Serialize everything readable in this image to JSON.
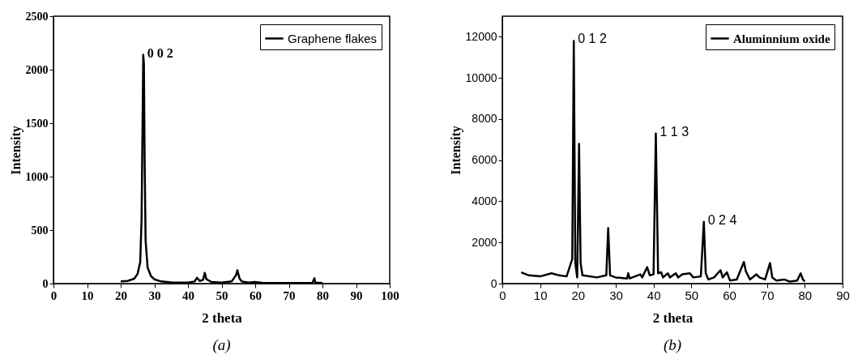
{
  "chart_data": [
    {
      "type": "line",
      "xlabel": "2 theta",
      "ylabel": "Intensity",
      "xlim": [
        0,
        100
      ],
      "xticks": [
        0,
        10,
        20,
        30,
        40,
        50,
        60,
        70,
        80,
        90,
        100
      ],
      "ylim": [
        0,
        2500
      ],
      "yticks": [
        0,
        500,
        1000,
        1500,
        2000,
        2500
      ],
      "grid": false,
      "legend": "top right",
      "series": [
        {
          "name": "Graphene flakes",
          "color": "#000000",
          "x": [
            20,
            22,
            24,
            25,
            25.8,
            26.2,
            26.5,
            26.7,
            26.9,
            27.1,
            27.4,
            28,
            29,
            30,
            32,
            35,
            40,
            42,
            42.7,
            43.5,
            44.5,
            45,
            45.5,
            47,
            50,
            53,
            54.3,
            54.7,
            55.3,
            56,
            58,
            60,
            62,
            70,
            77,
            77.6,
            77.9,
            80
          ],
          "values": [
            20,
            25,
            45,
            90,
            200,
            600,
            1500,
            2140,
            2050,
            1200,
            400,
            150,
            70,
            40,
            20,
            12,
            10,
            20,
            55,
            25,
            35,
            100,
            40,
            15,
            10,
            20,
            80,
            125,
            50,
            20,
            10,
            15,
            8,
            5,
            5,
            50,
            10,
            5
          ]
        }
      ],
      "annotations": [
        {
          "text": "0 0 2",
          "x": 26.7,
          "y": 2140
        },
        "(a)"
      ]
    },
    {
      "type": "line",
      "xlabel": "2 theta",
      "ylabel": "Intensity",
      "xlim": [
        0,
        90
      ],
      "xticks": [
        0,
        10,
        20,
        30,
        40,
        50,
        60,
        70,
        80,
        90
      ],
      "ylim": [
        0,
        13000
      ],
      "yticks": [
        0,
        2000,
        4000,
        6000,
        8000,
        10000,
        12000
      ],
      "grid": false,
      "legend": "top right",
      "series": [
        {
          "name": "Aluminnium oxide",
          "color": "#000000",
          "x": [
            5,
            7,
            10,
            13,
            15,
            17,
            18.5,
            18.9,
            19.3,
            19.8,
            20.3,
            20.7,
            21.2,
            25,
            27.5,
            28,
            28.5,
            30,
            33,
            33.3,
            33.7,
            36.5,
            37,
            38.3,
            39,
            40,
            40.6,
            41.2,
            42,
            42.5,
            43.8,
            44.3,
            45.9,
            46.5,
            47.6,
            49.6,
            50.5,
            52.5,
            53.3,
            53.8,
            54.5,
            56,
            57.7,
            58.3,
            59.4,
            60.2,
            62,
            63.9,
            64.4,
            65.5,
            67.2,
            68,
            69.5,
            70.8,
            71.4,
            72.5,
            74.5,
            76,
            78,
            78.9,
            79.5,
            80
          ],
          "values": [
            550,
            400,
            350,
            500,
            400,
            350,
            1200,
            11800,
            1000,
            300,
            6800,
            1000,
            400,
            300,
            400,
            2700,
            400,
            300,
            250,
            500,
            250,
            450,
            300,
            800,
            400,
            450,
            7300,
            500,
            550,
            300,
            500,
            300,
            500,
            300,
            450,
            500,
            300,
            350,
            3000,
            500,
            200,
            300,
            650,
            300,
            550,
            150,
            200,
            1050,
            600,
            200,
            450,
            300,
            200,
            1000,
            300,
            150,
            200,
            100,
            150,
            500,
            200,
            100
          ]
        }
      ],
      "annotations": [
        {
          "text": "0 1 2",
          "x": 18.9,
          "y": 11800
        },
        {
          "text": "1 1 3",
          "x": 40.6,
          "y": 7300
        },
        {
          "text": "0 2 4",
          "x": 53.3,
          "y": 3000
        },
        "(b)"
      ]
    }
  ]
}
